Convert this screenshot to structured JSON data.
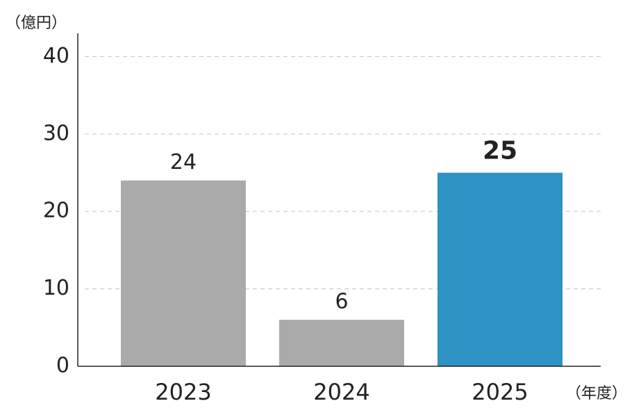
{
  "chart_data": {
    "type": "bar",
    "y_axis_label": "（億円）",
    "x_axis_label": "（年度）",
    "categories": [
      "2023",
      "2024",
      "2025"
    ],
    "values": [
      24,
      6,
      25
    ],
    "colors": [
      "#aaaaaa",
      "#aaaaaa",
      "#2e92c4"
    ],
    "ylim": [
      0,
      43
    ],
    "yticks": [
      0,
      10,
      20,
      30,
      40
    ],
    "grid": true
  }
}
